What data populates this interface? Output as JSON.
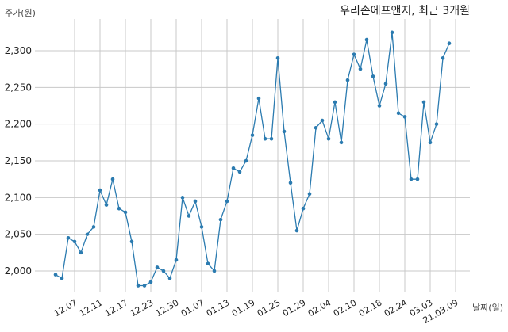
{
  "chart_data": {
    "type": "line",
    "title": "우리손에프앤지, 최근 3개월",
    "ylabel": "주가(원)",
    "xlabel": "날짜(일)",
    "ylim": [
      1975,
      2340
    ],
    "yticks": [
      2000,
      2050,
      2100,
      2150,
      2200,
      2250,
      2300
    ],
    "ytick_labels": [
      "2,000",
      "2,050",
      "2,100",
      "2,150",
      "2,200",
      "2,250",
      "2,300"
    ],
    "xtick_labels": [
      "12.07",
      "12.11",
      "12.17",
      "12.23",
      "12.30",
      "01.07",
      "01.13",
      "01.19",
      "01.25",
      "01.29",
      "02.04",
      "02.10",
      "02.18",
      "02.24",
      "03.03",
      "21.03.09"
    ],
    "xtick_index": [
      3,
      7,
      11,
      15,
      19,
      23,
      27,
      31,
      35,
      39,
      43,
      47,
      51,
      55,
      59,
      63
    ],
    "grid": true,
    "line_color": "#2b7bb0",
    "series": [
      {
        "values": [
          1995,
          1990,
          2045,
          2040,
          2025,
          2050,
          2060,
          2110,
          2090,
          2125,
          2085,
          2080,
          2040,
          1980,
          1980,
          1985,
          2005,
          2000,
          1990,
          2015,
          2100,
          2075,
          2095,
          2060,
          2010,
          2000,
          2070,
          2095,
          2140,
          2135,
          2150,
          2185,
          2235,
          2180,
          2180,
          2290,
          2190,
          2120,
          2055,
          2085,
          2105,
          2195,
          2205,
          2180,
          2230,
          2175,
          2260,
          2295,
          2275,
          2315,
          2265,
          2225,
          2255,
          2325,
          2215,
          2210,
          2125,
          2125,
          2230,
          2175,
          2200,
          2290,
          2310
        ]
      }
    ]
  }
}
